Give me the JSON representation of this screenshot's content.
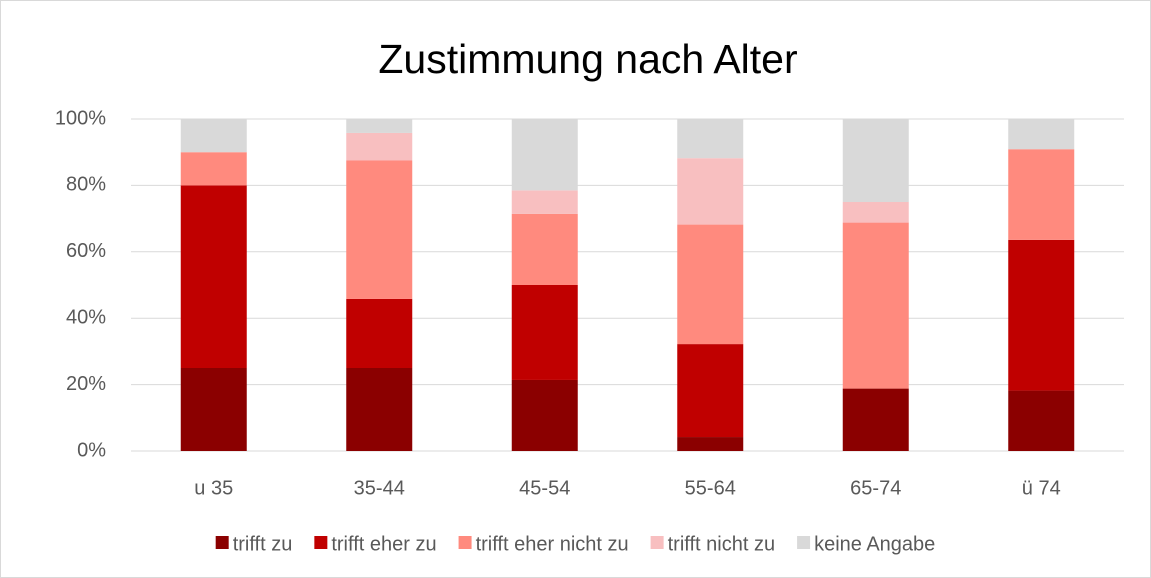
{
  "chart_data": {
    "type": "stacked_bar",
    "title": "Zustimmung nach Alter",
    "categories": [
      "u 35",
      "35-44",
      "45-54",
      "55-64",
      "65-74",
      "ü 74"
    ],
    "series": [
      {
        "name": "trifft zu",
        "color": "#8b0000",
        "values": [
          25,
          25,
          21.4,
          4.2,
          18.8,
          18.2
        ]
      },
      {
        "name": "trifft eher zu",
        "color": "#c00000",
        "values": [
          55,
          20.8,
          28.6,
          28,
          0,
          45.4
        ]
      },
      {
        "name": "trifft eher nicht zu",
        "color": "#ff8a7e",
        "values": [
          10,
          41.7,
          21.4,
          36,
          50,
          27.3
        ]
      },
      {
        "name": "trifft nicht zu",
        "color": "#f8bfc0",
        "values": [
          0,
          8.3,
          7.1,
          20,
          6.2,
          0
        ]
      },
      {
        "name": "keine Angabe",
        "color": "#d9d9d9",
        "values": [
          10,
          4.2,
          21.5,
          11.8,
          25,
          9.1
        ]
      }
    ],
    "ylim": [
      0,
      100
    ],
    "yticks": [
      {
        "value": 0,
        "label": "0%"
      },
      {
        "value": 20,
        "label": "20%"
      },
      {
        "value": 40,
        "label": "40%"
      },
      {
        "value": 60,
        "label": "60%"
      },
      {
        "value": 80,
        "label": "80%"
      },
      {
        "value": 100,
        "label": "100%"
      }
    ],
    "grid": true,
    "legend": "bottom"
  }
}
